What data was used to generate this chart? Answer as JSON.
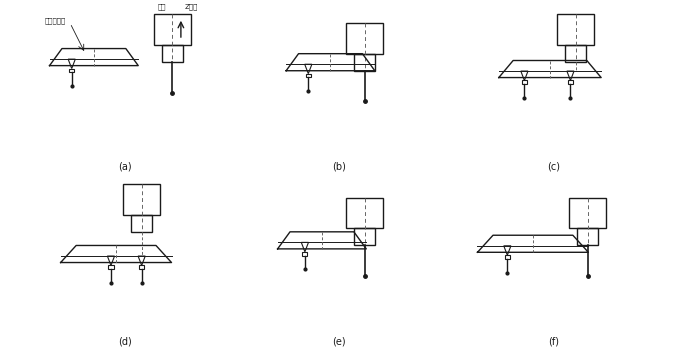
{
  "labels": [
    "(a)",
    "(b)",
    "(c)",
    "(d)",
    "(e)",
    "(f)"
  ],
  "ann_magazine": "斗筠式刀库",
  "ann_spindle": "主轴",
  "ann_zaxis": "Z坐标",
  "bg_color": "#ffffff",
  "lc": "#1a1a1a",
  "dc": "#666666"
}
